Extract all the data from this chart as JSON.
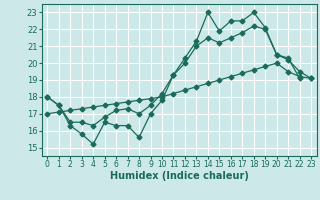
{
  "xlabel": "Humidex (Indice chaleur)",
  "bg_color": "#cce8e8",
  "grid_color": "#ffffff",
  "line_color": "#1a6b5a",
  "xlim": [
    -0.5,
    23.5
  ],
  "ylim": [
    14.5,
    23.5
  ],
  "yticks": [
    15,
    16,
    17,
    18,
    19,
    20,
    21,
    22,
    23
  ],
  "xticks": [
    0,
    1,
    2,
    3,
    4,
    5,
    6,
    7,
    8,
    9,
    10,
    11,
    12,
    13,
    14,
    15,
    16,
    17,
    18,
    19,
    20,
    21,
    22,
    23
  ],
  "series_jagged_x": [
    0,
    1,
    2,
    3,
    4,
    5,
    6,
    7,
    8,
    9,
    10,
    11,
    12,
    13,
    14,
    15,
    16,
    17,
    18,
    19,
    20,
    21,
    22
  ],
  "series_jagged_y": [
    18.0,
    17.5,
    16.3,
    15.8,
    15.2,
    16.5,
    16.3,
    16.3,
    15.6,
    17.0,
    17.8,
    19.3,
    20.3,
    21.3,
    23.0,
    21.9,
    22.5,
    22.5,
    23.0,
    22.1,
    20.5,
    20.3,
    19.1
  ],
  "series_mid_x": [
    0,
    1,
    2,
    3,
    4,
    5,
    6,
    7,
    8,
    9,
    10,
    11,
    12,
    13,
    14,
    15,
    16,
    17,
    18,
    19,
    20,
    21,
    22,
    23
  ],
  "series_mid_y": [
    18.0,
    17.5,
    16.5,
    16.5,
    16.3,
    16.8,
    17.2,
    17.3,
    17.0,
    17.5,
    18.2,
    19.3,
    20.0,
    21.0,
    21.5,
    21.2,
    21.5,
    21.8,
    22.2,
    22.0,
    20.5,
    20.2,
    19.5,
    19.1
  ],
  "series_trend_x": [
    0,
    1,
    2,
    3,
    4,
    5,
    6,
    7,
    8,
    9,
    10,
    11,
    12,
    13,
    14,
    15,
    16,
    17,
    18,
    19,
    20,
    21,
    22,
    23
  ],
  "series_trend_y": [
    17.0,
    17.1,
    17.2,
    17.3,
    17.4,
    17.5,
    17.6,
    17.7,
    17.8,
    17.9,
    18.0,
    18.2,
    18.4,
    18.6,
    18.8,
    19.0,
    19.2,
    19.4,
    19.6,
    19.8,
    20.0,
    19.5,
    19.2,
    19.1
  ]
}
